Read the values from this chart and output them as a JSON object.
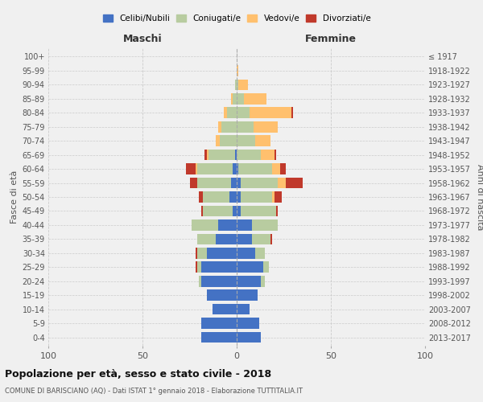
{
  "age_groups": [
    "0-4",
    "5-9",
    "10-14",
    "15-19",
    "20-24",
    "25-29",
    "30-34",
    "35-39",
    "40-44",
    "45-49",
    "50-54",
    "55-59",
    "60-64",
    "65-69",
    "70-74",
    "75-79",
    "80-84",
    "85-89",
    "90-94",
    "95-99",
    "100+"
  ],
  "birth_years": [
    "2013-2017",
    "2008-2012",
    "2003-2007",
    "1998-2002",
    "1993-1997",
    "1988-1992",
    "1983-1987",
    "1978-1982",
    "1973-1977",
    "1968-1972",
    "1963-1967",
    "1958-1962",
    "1953-1957",
    "1948-1952",
    "1943-1947",
    "1938-1942",
    "1933-1937",
    "1928-1932",
    "1923-1927",
    "1918-1922",
    "≤ 1917"
  ],
  "maschi": {
    "celibi": [
      19,
      19,
      13,
      16,
      19,
      19,
      16,
      11,
      10,
      2,
      4,
      3,
      2,
      1,
      0,
      0,
      0,
      0,
      0,
      0,
      0
    ],
    "coniugati": [
      0,
      0,
      0,
      0,
      1,
      2,
      5,
      10,
      14,
      16,
      14,
      18,
      19,
      14,
      9,
      8,
      5,
      2,
      1,
      0,
      0
    ],
    "vedovi": [
      0,
      0,
      0,
      0,
      0,
      0,
      0,
      0,
      0,
      0,
      0,
      0,
      1,
      1,
      2,
      2,
      2,
      1,
      0,
      0,
      0
    ],
    "divorziati": [
      0,
      0,
      0,
      0,
      0,
      1,
      1,
      0,
      0,
      1,
      2,
      4,
      5,
      1,
      0,
      0,
      0,
      0,
      0,
      0,
      0
    ]
  },
  "femmine": {
    "nubili": [
      13,
      12,
      7,
      11,
      13,
      14,
      10,
      8,
      8,
      2,
      2,
      2,
      1,
      0,
      0,
      0,
      0,
      0,
      0,
      0,
      0
    ],
    "coniugate": [
      0,
      0,
      0,
      0,
      2,
      3,
      5,
      10,
      14,
      19,
      17,
      20,
      18,
      13,
      10,
      9,
      7,
      4,
      1,
      0,
      0
    ],
    "vedove": [
      0,
      0,
      0,
      0,
      0,
      0,
      0,
      0,
      0,
      0,
      1,
      4,
      4,
      7,
      8,
      13,
      22,
      12,
      5,
      1,
      0
    ],
    "divorziate": [
      0,
      0,
      0,
      0,
      0,
      0,
      0,
      1,
      0,
      1,
      4,
      9,
      3,
      1,
      0,
      0,
      1,
      0,
      0,
      0,
      0
    ]
  },
  "color_celibi": "#4472c4",
  "color_coniugati": "#b8cca0",
  "color_vedovi": "#ffc06e",
  "color_divorziati": "#c0392b",
  "title": "Popolazione per età, sesso e stato civile - 2018",
  "subtitle": "COMUNE DI BARISCIANO (AQ) - Dati ISTAT 1° gennaio 2018 - Elaborazione TUTTITALIA.IT",
  "xlabel_left": "Maschi",
  "xlabel_right": "Femmine",
  "ylabel_left": "Fasce di età",
  "ylabel_right": "Anni di nascita",
  "xlim": 100,
  "background_color": "#f0f0f0"
}
